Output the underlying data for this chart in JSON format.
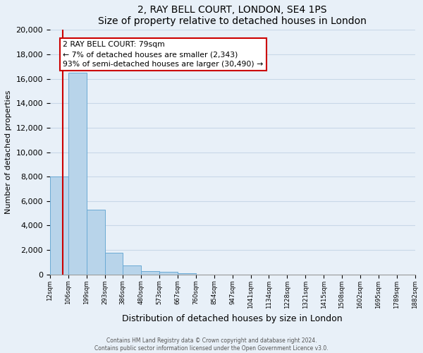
{
  "title": "2, RAY BELL COURT, LONDON, SE4 1PS",
  "subtitle": "Size of property relative to detached houses in London",
  "xlabel": "Distribution of detached houses by size in London",
  "ylabel": "Number of detached properties",
  "bins": [
    "12sqm",
    "106sqm",
    "199sqm",
    "293sqm",
    "386sqm",
    "480sqm",
    "573sqm",
    "667sqm",
    "760sqm",
    "854sqm",
    "947sqm",
    "1041sqm",
    "1134sqm",
    "1228sqm",
    "1321sqm",
    "1415sqm",
    "1508sqm",
    "1602sqm",
    "1695sqm",
    "1789sqm",
    "1882sqm"
  ],
  "bar_heights": [
    8000,
    16500,
    5300,
    1800,
    750,
    300,
    200,
    100,
    0,
    0,
    0,
    0,
    0,
    0,
    0,
    0,
    0,
    0,
    0,
    0
  ],
  "bar_color": "#b8d4ea",
  "bar_edge_color": "#6aaad4",
  "ylim": [
    0,
    20000
  ],
  "yticks": [
    0,
    2000,
    4000,
    6000,
    8000,
    10000,
    12000,
    14000,
    16000,
    18000,
    20000
  ],
  "property_size": 79,
  "pct_smaller": 7,
  "num_smaller": 2343,
  "pct_larger": 93,
  "num_larger": 30490,
  "annotation_box_color": "#ffffff",
  "annotation_box_edge_color": "#cc0000",
  "red_line_color": "#cc0000",
  "grid_color": "#c8d8e8",
  "bg_color": "#e8f0f8",
  "footer_line1": "Contains HM Land Registry data © Crown copyright and database right 2024.",
  "footer_line2": "Contains public sector information licensed under the Open Government Licence v3.0."
}
